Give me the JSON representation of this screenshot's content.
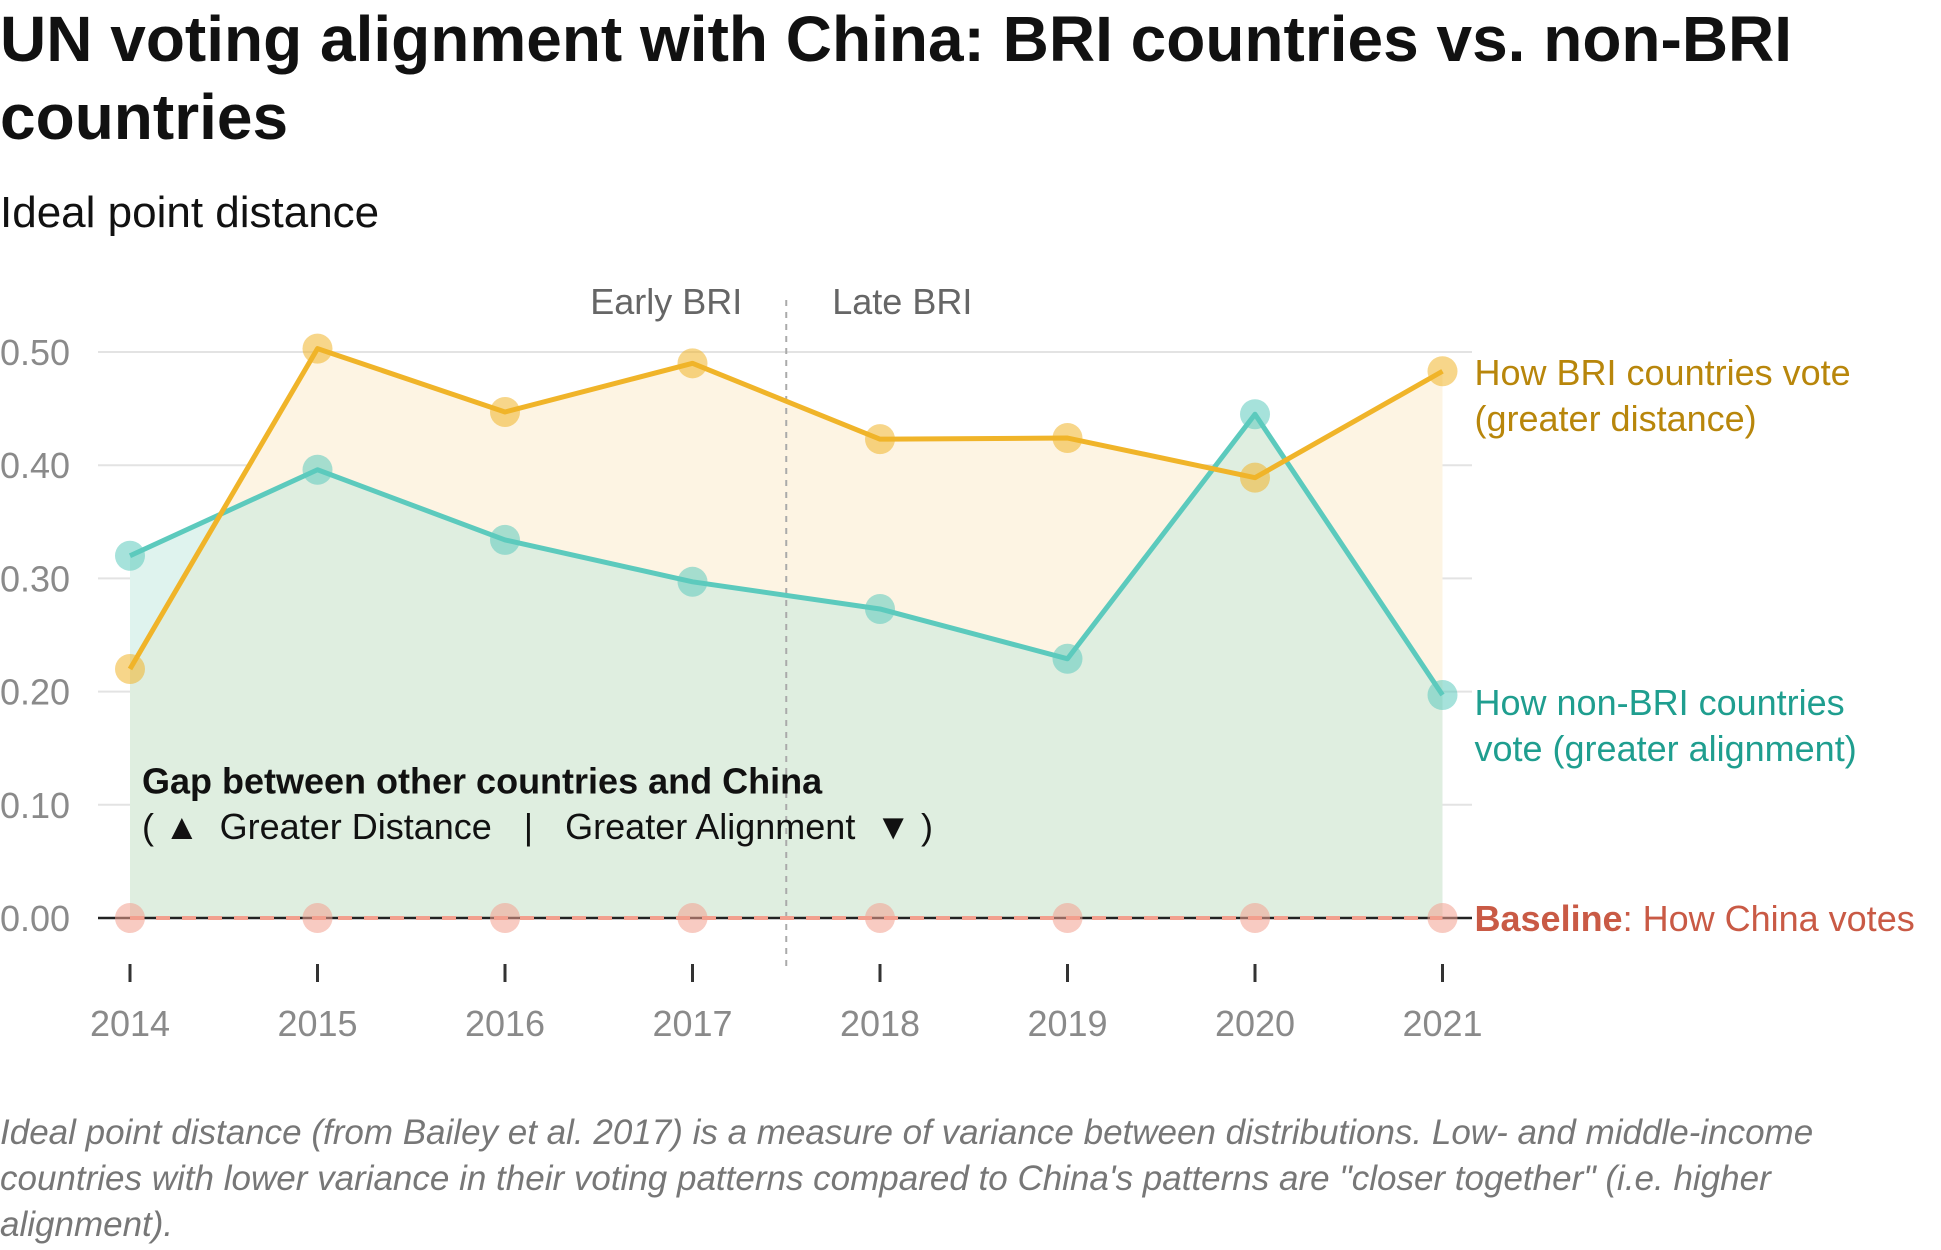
{
  "title": "UN voting alignment with China: BRI countries vs. non-BRI countries",
  "subtitle": "Ideal point distance",
  "footnote": "Ideal point distance (from Bailey et al. 2017) is a measure of variance between distributions. Low- and middle-income countries with lower variance in their voting patterns compared to China's patterns are \"closer together\" (i.e. higher alignment).",
  "colors": {
    "bri": "#f0b429",
    "bri_label": "#b8860b",
    "non_bri": "#5ccabd",
    "non_bri_label": "#1f9e8f",
    "baseline": "#f2a08f",
    "baseline_label": "#c95a45",
    "grid": "#e3e3e3",
    "bri_fill": "#fdf4e3",
    "non_bri_fill": "#dfeee0",
    "cross_fill": "#dff3ee"
  },
  "chart_data": {
    "type": "line",
    "x": [
      2014,
      2015,
      2016,
      2017,
      2018,
      2019,
      2020,
      2021
    ],
    "y_ticks": [
      "0.50",
      "0.40",
      "0.30",
      "0.20",
      "0.10",
      "0.00"
    ],
    "y_tick_values": [
      0.5,
      0.4,
      0.3,
      0.2,
      0.1,
      0.0
    ],
    "ylim": [
      0,
      0.5
    ],
    "grid": true,
    "series": [
      {
        "key": "bri",
        "values": [
          0.22,
          0.503,
          0.447,
          0.49,
          0.423,
          0.424,
          0.389,
          0.483
        ]
      },
      {
        "key": "non_bri",
        "values": [
          0.32,
          0.396,
          0.334,
          0.297,
          0.273,
          0.229,
          0.445,
          0.197
        ]
      },
      {
        "key": "baseline",
        "values": [
          0,
          0,
          0,
          0,
          0,
          0,
          0,
          0
        ]
      }
    ],
    "labels": {
      "bri_line1": "How BRI countries vote",
      "bri_line2": "(greater distance)",
      "non_bri_line1": "How non-BRI countries",
      "non_bri_line2": "vote (greater alignment)",
      "baseline_bold": "Baseline",
      "baseline_rest": ": How China votes"
    },
    "annotations": {
      "early": "Early BRI",
      "late": "Late BRI",
      "period_divider_after_year": 2017,
      "gap_title": "Gap between other countries and China",
      "gap_open": "(",
      "gap_distance": "Greater Distance",
      "gap_sep": "|",
      "gap_alignment": "Greater Alignment",
      "gap_close": ")"
    }
  }
}
